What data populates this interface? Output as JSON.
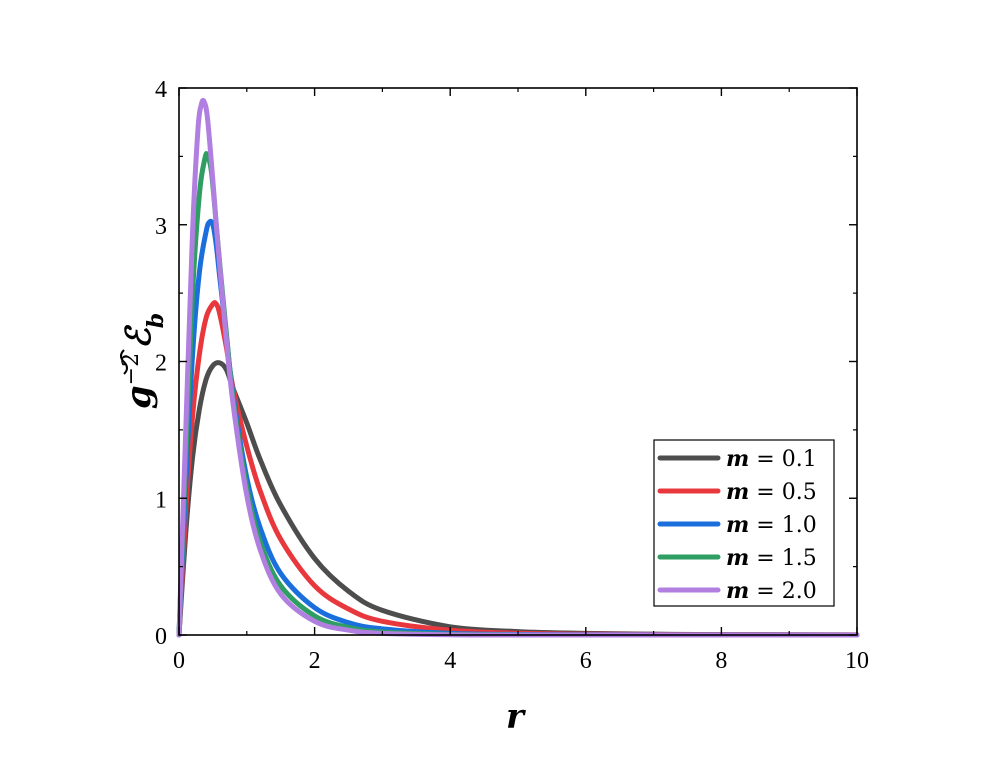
{
  "chart_data": {
    "type": "line",
    "xlabel": "r",
    "ylabel": {
      "main": "g",
      "sup": "−2",
      "symbol": "ℰ",
      "sub": "b"
    },
    "xlim": [
      0,
      10
    ],
    "ylim": [
      0,
      4
    ],
    "xticks": [
      "0",
      "2",
      "4",
      "6",
      "8",
      "10"
    ],
    "yticks": [
      "0",
      "1",
      "2",
      "3",
      "4"
    ],
    "grid": false,
    "legend_position": "bottom-right",
    "series": [
      {
        "name": "m = 0.1",
        "var": "m",
        "eq": " = 0.1",
        "color": "#4d4d4d",
        "x": [
          0,
          0.1,
          0.2,
          0.3,
          0.4,
          0.5,
          0.6,
          0.7,
          0.8,
          1.0,
          1.2,
          1.5,
          2.0,
          2.5,
          3.0,
          4.0,
          5.0,
          6.0,
          7.0,
          8.0,
          10.0
        ],
        "y": [
          0,
          0.75,
          1.3,
          1.65,
          1.87,
          1.97,
          1.99,
          1.94,
          1.8,
          1.55,
          1.28,
          0.95,
          0.56,
          0.32,
          0.18,
          0.06,
          0.025,
          0.012,
          0.006,
          0.003,
          0.001
        ]
      },
      {
        "name": "m = 0.5",
        "var": "m",
        "eq": " = 0.5",
        "color": "#e8383d",
        "x": [
          0,
          0.1,
          0.2,
          0.3,
          0.4,
          0.5,
          0.55,
          0.6,
          0.7,
          0.8,
          1.0,
          1.2,
          1.5,
          2.0,
          2.5,
          3.0,
          4.0,
          5.0,
          6.0,
          8.0,
          10.0
        ],
        "y": [
          0,
          0.9,
          1.6,
          2.05,
          2.32,
          2.42,
          2.42,
          2.35,
          2.1,
          1.8,
          1.38,
          1.05,
          0.7,
          0.36,
          0.19,
          0.1,
          0.035,
          0.013,
          0.006,
          0.002,
          0.001
        ]
      },
      {
        "name": "m = 1.0",
        "var": "m",
        "eq": " = 1.0",
        "color": "#1a6fdc",
        "x": [
          0,
          0.1,
          0.2,
          0.3,
          0.4,
          0.45,
          0.5,
          0.55,
          0.6,
          0.7,
          0.8,
          1.0,
          1.2,
          1.5,
          2.0,
          2.5,
          3.0,
          4.0,
          5.0,
          6.0,
          8.0,
          10.0
        ],
        "y": [
          0,
          1.1,
          2.05,
          2.65,
          2.95,
          3.02,
          3.0,
          2.85,
          2.62,
          2.18,
          1.75,
          1.15,
          0.78,
          0.45,
          0.2,
          0.09,
          0.045,
          0.012,
          0.004,
          0.002,
          0.001,
          0.0
        ]
      },
      {
        "name": "m = 1.5",
        "var": "m",
        "eq": " = 1.5",
        "color": "#2e9e62",
        "x": [
          0,
          0.1,
          0.2,
          0.3,
          0.38,
          0.42,
          0.48,
          0.55,
          0.6,
          0.7,
          0.8,
          1.0,
          1.2,
          1.5,
          2.0,
          2.5,
          3.0,
          4.0,
          5.0,
          6.0,
          10.0
        ],
        "y": [
          0,
          1.3,
          2.5,
          3.22,
          3.48,
          3.51,
          3.38,
          3.0,
          2.72,
          2.2,
          1.72,
          1.08,
          0.68,
          0.36,
          0.14,
          0.055,
          0.022,
          0.005,
          0.001,
          0.0,
          0.0
        ]
      },
      {
        "name": "m = 2.0",
        "var": "m",
        "eq": " = 2.0",
        "color": "#b07fe0",
        "x": [
          0,
          0.1,
          0.2,
          0.28,
          0.33,
          0.37,
          0.42,
          0.5,
          0.55,
          0.6,
          0.7,
          0.8,
          1.0,
          1.2,
          1.5,
          2.0,
          2.5,
          3.0,
          4.0,
          5.0,
          10.0
        ],
        "y": [
          0,
          1.5,
          2.95,
          3.7,
          3.88,
          3.9,
          3.78,
          3.32,
          3.0,
          2.7,
          2.15,
          1.68,
          1.02,
          0.62,
          0.3,
          0.1,
          0.035,
          0.012,
          0.002,
          0.0,
          0.0
        ]
      }
    ]
  }
}
